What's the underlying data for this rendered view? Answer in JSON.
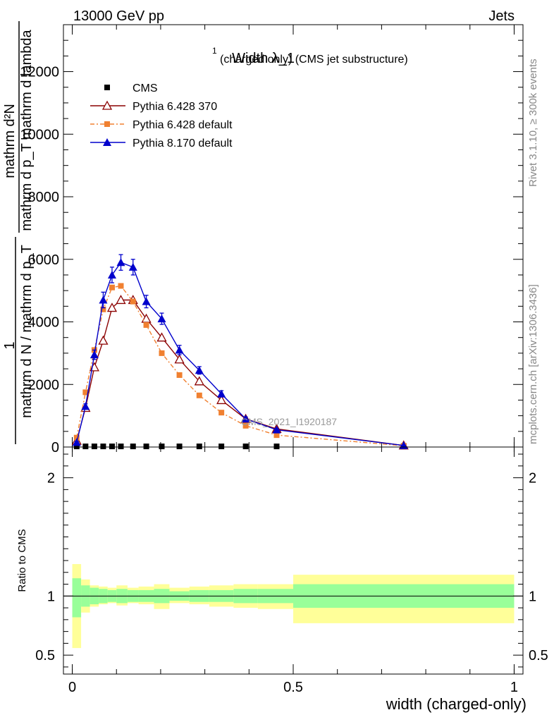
{
  "header": {
    "left": "13000 GeV pp",
    "right": "Jets"
  },
  "side_labels": {
    "rivet": "Rivet 3.1.10, ≥ 300k events",
    "mcplots": "mcplots.cern.ch [arXiv:1306.3436]"
  },
  "watermark": "CMS_2021_I1920187",
  "colors": {
    "cms": "#000000",
    "py6_370": "#8b0000",
    "py6_default": "#f08030",
    "py8": "#0000cc",
    "band_inner": "#99ff99",
    "band_outer": "#ffff99"
  },
  "chart_data": [
    {
      "type": "line",
      "title": "Width λ_1",
      "title_superscript": "1",
      "subtitle": "(charged only) (CMS jet substructure)",
      "ylabel_numerator": "mathrm d²N",
      "ylabel_denominator": "mathrm d p_T mathrm d lambda",
      "ylabel_left_one": "1",
      "ylabel_left_denominator": "mathrm d N / mathrm d p_T",
      "xlim": [
        -0.02,
        1.02
      ],
      "ylim": [
        0,
        13500
      ],
      "yticks": [
        0,
        2000,
        4000,
        6000,
        8000,
        10000,
        12000
      ],
      "ytick_labels": [
        "0",
        "2000",
        "4000",
        "6000",
        "8000",
        "10000",
        "12000"
      ],
      "legend_placement": "top-left",
      "x": [
        0.01,
        0.03,
        0.05,
        0.07,
        0.09,
        0.11,
        0.1375,
        0.1675,
        0.2025,
        0.2425,
        0.2875,
        0.3375,
        0.3925,
        0.4625,
        0.75
      ],
      "series": [
        {
          "name": "CMS",
          "marker": "square",
          "values": [
            20,
            20,
            20,
            20,
            20,
            20,
            20,
            20,
            20,
            20,
            20,
            20,
            20,
            20,
            20
          ]
        },
        {
          "name": "Pythia 6.428 370",
          "marker": "open-triangle",
          "values": [
            200,
            1250,
            2550,
            3400,
            4450,
            4700,
            4700,
            4100,
            3500,
            2800,
            2100,
            1500,
            900,
            580,
            50
          ]
        },
        {
          "name": "Pythia 6.428 default",
          "marker": "square",
          "dashed": true,
          "values": [
            300,
            1750,
            3100,
            4400,
            5100,
            5150,
            4650,
            3900,
            3000,
            2300,
            1650,
            1100,
            680,
            380,
            40
          ]
        },
        {
          "name": "Pythia 8.170 default",
          "marker": "filled-triangle",
          "values": [
            150,
            1300,
            2950,
            4700,
            5500,
            5900,
            5750,
            4650,
            4100,
            3100,
            2450,
            1700,
            900,
            550,
            50
          ],
          "errors": [
            30,
            80,
            150,
            250,
            250,
            250,
            250,
            200,
            180,
            150,
            120,
            100,
            60,
            40,
            10
          ]
        }
      ]
    },
    {
      "type": "area",
      "ylabel": "Ratio to CMS",
      "xlabel": "width (charged-only)",
      "xlim": [
        -0.02,
        1.02
      ],
      "ylim": [
        0.34,
        2.26
      ],
      "xticks": [
        0,
        0.5,
        1
      ],
      "xtick_labels": [
        "0",
        "0.5",
        "1"
      ],
      "yticks": [
        0.5,
        1,
        2
      ],
      "ytick_labels": [
        "0.5",
        "1",
        "2"
      ],
      "bins": [
        [
          0.0,
          0.02
        ],
        [
          0.02,
          0.04
        ],
        [
          0.04,
          0.06
        ],
        [
          0.06,
          0.08
        ],
        [
          0.08,
          0.1
        ],
        [
          0.1,
          0.125
        ],
        [
          0.125,
          0.15
        ],
        [
          0.15,
          0.185
        ],
        [
          0.185,
          0.22
        ],
        [
          0.22,
          0.265
        ],
        [
          0.265,
          0.31
        ],
        [
          0.31,
          0.365
        ],
        [
          0.365,
          0.42
        ],
        [
          0.42,
          0.5
        ],
        [
          0.5,
          1.0
        ]
      ],
      "inner_band": [
        [
          0.82,
          1.15
        ],
        [
          0.91,
          1.09
        ],
        [
          0.93,
          1.07
        ],
        [
          0.94,
          1.06
        ],
        [
          0.95,
          1.05
        ],
        [
          0.94,
          1.06
        ],
        [
          0.95,
          1.05
        ],
        [
          0.95,
          1.05
        ],
        [
          0.94,
          1.06
        ],
        [
          0.96,
          1.04
        ],
        [
          0.95,
          1.05
        ],
        [
          0.95,
          1.05
        ],
        [
          0.94,
          1.06
        ],
        [
          0.94,
          1.06
        ],
        [
          0.9,
          1.1
        ]
      ],
      "outer_band": [
        [
          0.56,
          1.27
        ],
        [
          0.86,
          1.14
        ],
        [
          0.91,
          1.09
        ],
        [
          0.93,
          1.08
        ],
        [
          0.94,
          1.07
        ],
        [
          0.92,
          1.09
        ],
        [
          0.94,
          1.07
        ],
        [
          0.93,
          1.08
        ],
        [
          0.89,
          1.1
        ],
        [
          0.94,
          1.07
        ],
        [
          0.93,
          1.08
        ],
        [
          0.91,
          1.09
        ],
        [
          0.9,
          1.1
        ],
        [
          0.89,
          1.1
        ],
        [
          0.77,
          1.18
        ]
      ],
      "reference_line": 1
    }
  ]
}
